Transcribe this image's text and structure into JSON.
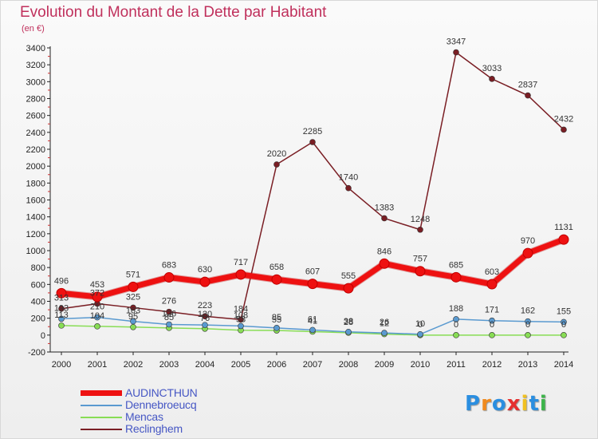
{
  "header": {
    "title": "Evolution du Montant de la Dette par Habitant",
    "unit": "(en €)"
  },
  "logo": {
    "text": "Proxiti",
    "colors": [
      "#2a8ee0",
      "#f08a1e",
      "#2a8ee0",
      "#e53030",
      "#f0c020",
      "#2a8ee0",
      "#3cb44a"
    ]
  },
  "chart_data": {
    "type": "line",
    "x": [
      2000,
      2001,
      2002,
      2003,
      2004,
      2005,
      2006,
      2007,
      2008,
      2009,
      2010,
      2011,
      2012,
      2013,
      2014
    ],
    "ylim": [
      -200,
      3400
    ],
    "yticks": [
      -200,
      0,
      200,
      400,
      600,
      800,
      1000,
      1200,
      1400,
      1600,
      1800,
      2000,
      2200,
      2400,
      2600,
      2800,
      3000,
      3200,
      3400
    ],
    "grid": false,
    "legend_position": "bottom-left",
    "series": [
      {
        "name": "AUDINCTHUN",
        "color": "#ee1111",
        "values": [
          496,
          453,
          571,
          683,
          630,
          717,
          658,
          607,
          555,
          846,
          757,
          685,
          603,
          970,
          1131
        ]
      },
      {
        "name": "Dennebroeucq",
        "color": "#5a9ad0",
        "values": [
          193,
          210,
          163,
          126,
          120,
          108,
          85,
          61,
          38,
          26,
          10,
          188,
          171,
          162,
          155
        ]
      },
      {
        "name": "Mencas",
        "color": "#88dd55",
        "values": [
          113,
          104,
          95,
          85,
          76,
          58,
          55,
          41,
          28,
          12,
          0,
          0,
          0,
          0,
          0
        ]
      },
      {
        "name": "Reclinghem",
        "color": "#7a1e24",
        "values": [
          313,
          372,
          325,
          276,
          223,
          184,
          2020,
          2285,
          1740,
          1383,
          1248,
          3347,
          3033,
          2837,
          2432
        ]
      }
    ]
  }
}
